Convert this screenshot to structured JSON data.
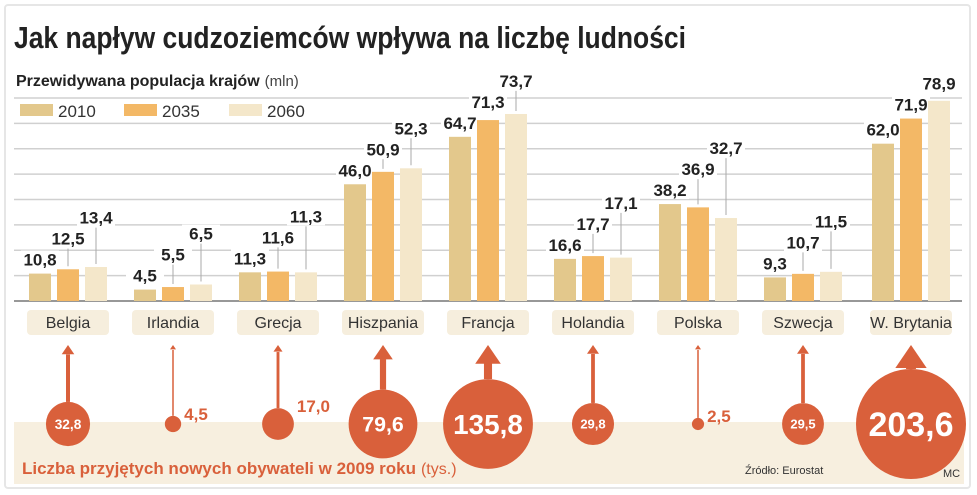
{
  "chart_data": {
    "type": "bar",
    "title": "Jak napływ cudzoziemców wpływa na liczbę ludności",
    "subtitle": "Przewidywana populacja krajów",
    "unit": "(mln)",
    "categories": [
      "Belgia",
      "Irlandia",
      "Grecja",
      "Hiszpania",
      "Francja",
      "Holandia",
      "Polska",
      "Szwecja",
      "W. Brytania"
    ],
    "series": [
      {
        "name": "2010",
        "color": "#e3c88c",
        "values": [
          10.8,
          4.5,
          11.3,
          46.0,
          64.7,
          16.6,
          38.2,
          9.3,
          62.0
        ],
        "labels": [
          "10,8",
          "4,5",
          "11,3",
          "46,0",
          "64,7",
          "16,6",
          "38,2",
          "9,3",
          "62,0"
        ]
      },
      {
        "name": "2035",
        "color": "#f3b866",
        "values": [
          12.5,
          5.5,
          11.6,
          50.9,
          71.3,
          17.7,
          36.9,
          10.7,
          71.9
        ],
        "labels": [
          "12,5",
          "5,5",
          "11,6",
          "50,9",
          "71,3",
          "17,7",
          "36,9",
          "10,7",
          "71,9"
        ]
      },
      {
        "name": "2060",
        "color": "#f4e7ca",
        "values": [
          13.4,
          6.5,
          11.3,
          52.3,
          73.7,
          17.1,
          32.7,
          11.5,
          78.9
        ],
        "labels": [
          "13,4",
          "6,5",
          "11,3",
          "52,3",
          "73,7",
          "17,1",
          "32,7",
          "11,5",
          "78,9"
        ]
      }
    ],
    "ylim": [
      0,
      80
    ],
    "grid": true,
    "legend": "top-left",
    "bubbles": {
      "title": "Liczba przyjętych nowych obywateli w 2009 roku",
      "unit": "(tys.)",
      "values": [
        32.8,
        4.5,
        17.0,
        79.6,
        135.8,
        29.8,
        2.5,
        29.5,
        203.6
      ],
      "labels": [
        "32,8",
        "4,5",
        "17,0",
        "79,6",
        "135,8",
        "29,8",
        "2,5",
        "29,5",
        "203,6"
      ],
      "color": "#d9603b"
    },
    "source": "Źródło: Eurostat",
    "credit": "MC"
  }
}
